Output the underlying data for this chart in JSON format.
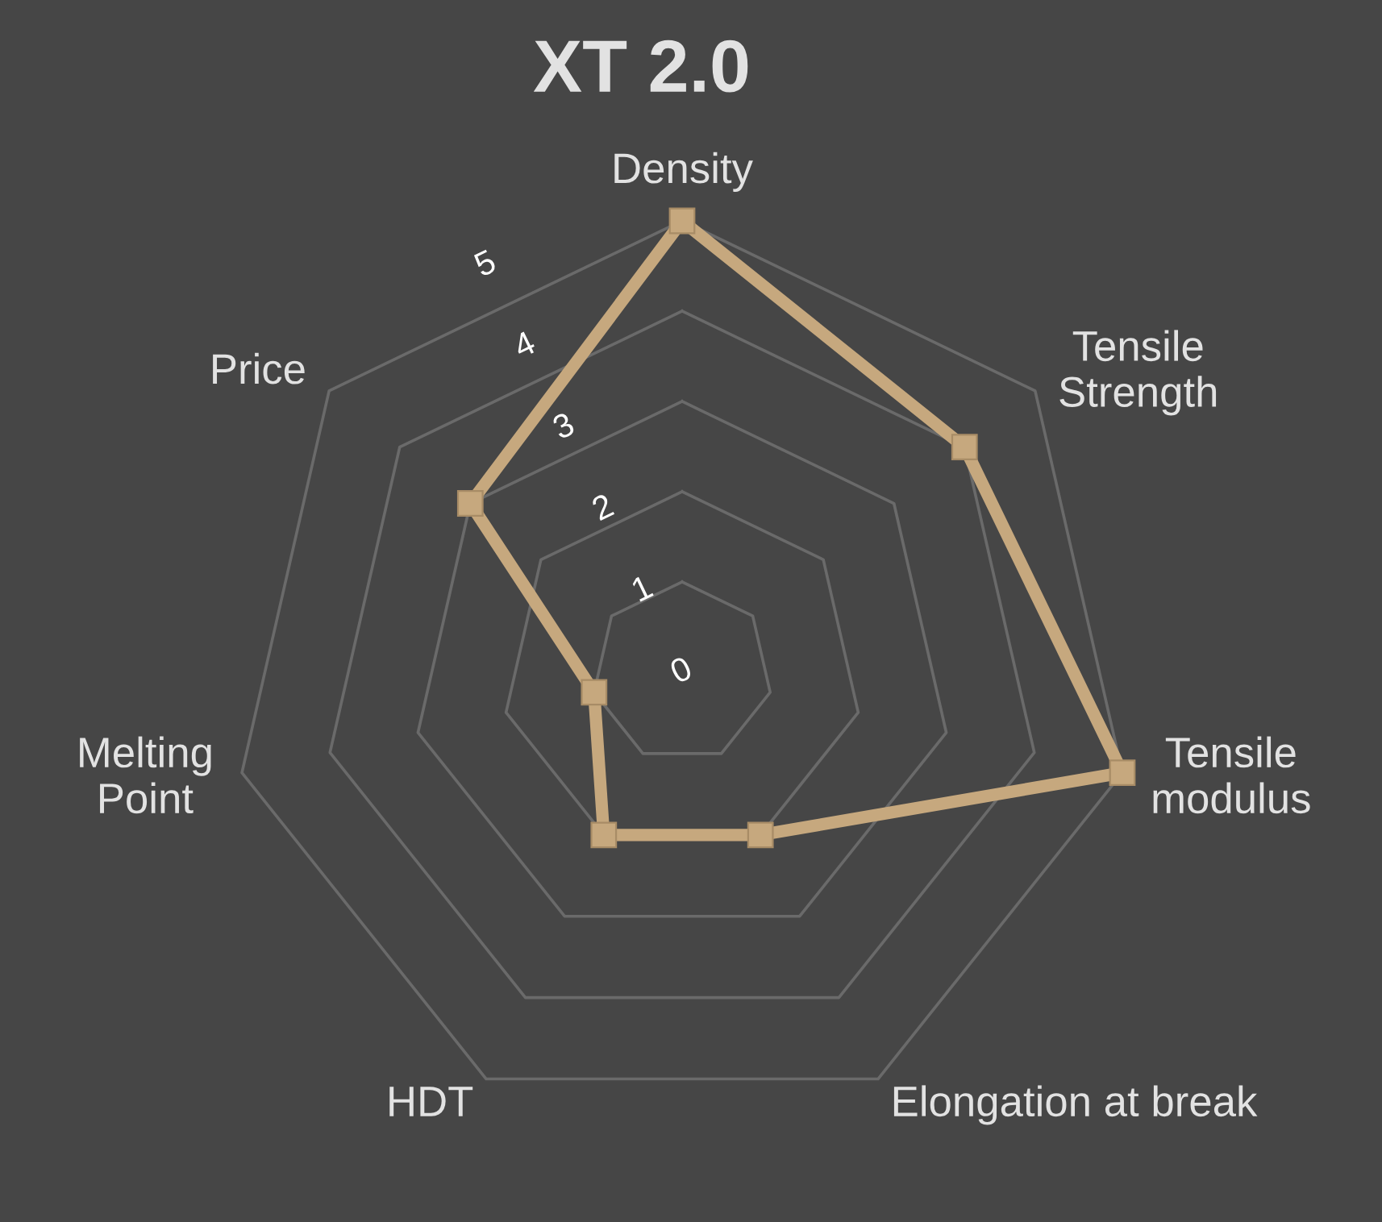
{
  "chart_data": {
    "type": "radar",
    "title": "XT 2.0",
    "categories": [
      "Density",
      "Tensile\nStrength",
      "Tensile\nmodulus",
      "Elongation at break",
      "HDT",
      "Melting\nPoint",
      "Price"
    ],
    "series": [
      {
        "color": "#c6a87e",
        "values": [
          5,
          4,
          5,
          2,
          2,
          1,
          3
        ]
      }
    ],
    "ylim": [
      0,
      5
    ],
    "yticks": [
      0,
      1,
      2,
      3,
      4,
      5
    ],
    "grid": true,
    "marker": "square",
    "line_style": "solid"
  }
}
